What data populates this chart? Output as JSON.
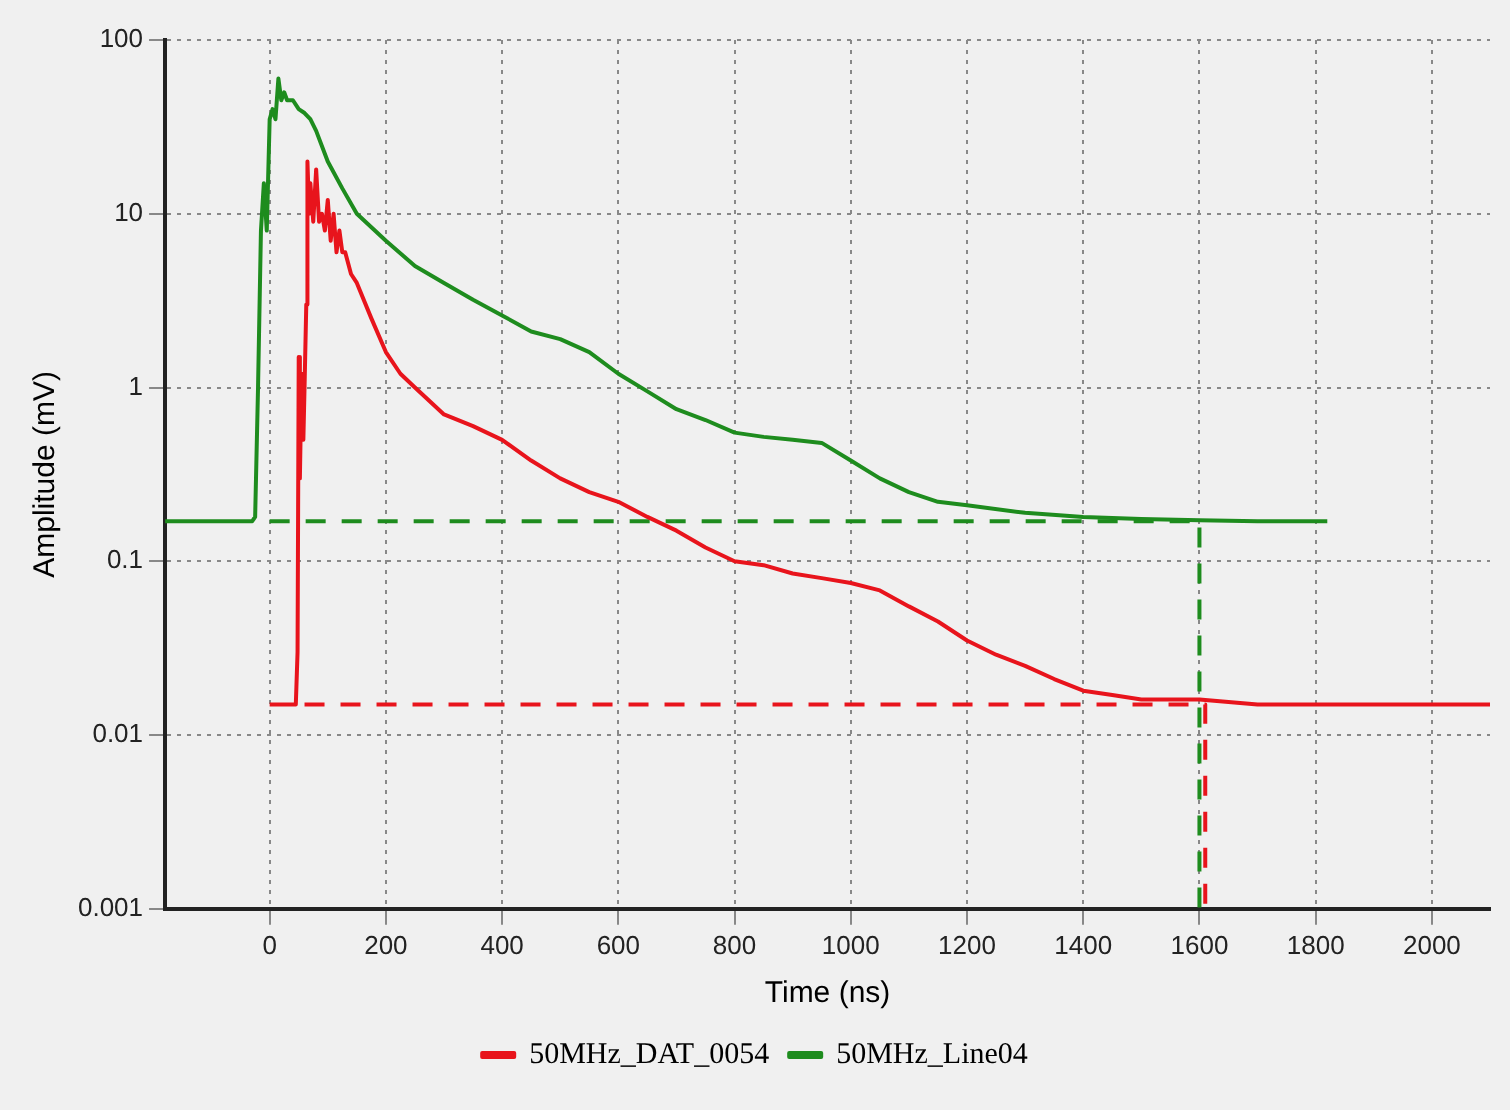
{
  "chart_data": {
    "type": "line",
    "xlabel": "Time (ns)",
    "ylabel": "Amplitude (mV)",
    "log": "y",
    "grid": true,
    "legend": "bottom",
    "xlim": [
      -180,
      2100
    ],
    "ylim": [
      0.001,
      100
    ],
    "xticks": [
      0,
      200,
      400,
      600,
      800,
      1000,
      1200,
      1400,
      1600,
      1800,
      2000
    ],
    "yticks": [
      0.001,
      0.01,
      0.1,
      1,
      10,
      100
    ],
    "series": [
      {
        "name": "50MHz_DAT_0054",
        "color": "#e8141c",
        "line_style": "solid",
        "x": [
          0,
          45,
          48,
          50,
          52,
          55,
          58,
          60,
          63,
          65,
          68,
          70,
          75,
          80,
          85,
          90,
          95,
          100,
          105,
          110,
          115,
          120,
          125,
          130,
          140,
          150,
          175,
          200,
          225,
          250,
          300,
          350,
          400,
          450,
          500,
          550,
          600,
          650,
          700,
          750,
          800,
          850,
          900,
          950,
          1000,
          1050,
          1100,
          1150,
          1200,
          1250,
          1300,
          1350,
          1400,
          1450,
          1500,
          1550,
          1600,
          1700,
          1800,
          1900,
          2000,
          2100
        ],
        "values": [
          0.015,
          0.015,
          0.03,
          1.5,
          0.3,
          1.2,
          0.5,
          1.0,
          3,
          20,
          10,
          15,
          9,
          18,
          9,
          10,
          8,
          12,
          7,
          10,
          6,
          8,
          6,
          6,
          4.5,
          4,
          2.5,
          1.6,
          1.2,
          1,
          0.7,
          0.6,
          0.5,
          0.38,
          0.3,
          0.25,
          0.22,
          0.18,
          0.15,
          0.12,
          0.1,
          0.095,
          0.085,
          0.08,
          0.075,
          0.068,
          0.055,
          0.045,
          0.035,
          0.029,
          0.025,
          0.021,
          0.018,
          0.017,
          0.016,
          0.016,
          0.016,
          0.015,
          0.015,
          0.015,
          0.015,
          0.015
        ]
      },
      {
        "name": "50MHz_Line04",
        "color": "#1e8c1e",
        "line_style": "solid",
        "x": [
          -180,
          -30,
          -25,
          -20,
          -15,
          -10,
          -5,
          0,
          5,
          10,
          15,
          20,
          25,
          30,
          40,
          50,
          60,
          70,
          80,
          100,
          125,
          150,
          200,
          250,
          300,
          350,
          400,
          450,
          500,
          550,
          600,
          650,
          700,
          750,
          800,
          850,
          900,
          950,
          1000,
          1050,
          1100,
          1150,
          1200,
          1300,
          1400,
          1500,
          1600,
          1700,
          1820
        ],
        "values": [
          0.17,
          0.17,
          0.18,
          1,
          8,
          15,
          8,
          35,
          40,
          35,
          60,
          45,
          50,
          45,
          45,
          40,
          38,
          35,
          30,
          20,
          14,
          10,
          7,
          5,
          4,
          3.2,
          2.6,
          2.1,
          1.9,
          1.6,
          1.2,
          0.95,
          0.75,
          0.65,
          0.55,
          0.52,
          0.5,
          0.48,
          0.38,
          0.3,
          0.25,
          0.22,
          0.21,
          0.19,
          0.18,
          0.175,
          0.172,
          0.17,
          0.17
        ]
      },
      {
        "color": "#1e8c1e",
        "line_style": "dashed",
        "x": [
          0,
          1600,
          1600
        ],
        "values": [
          0.17,
          0.17,
          0.001
        ]
      },
      {
        "color": "#e8141c",
        "line_style": "dashed",
        "x": [
          60,
          1610,
          1610
        ],
        "values": [
          0.015,
          0.015,
          0.001
        ]
      }
    ]
  }
}
